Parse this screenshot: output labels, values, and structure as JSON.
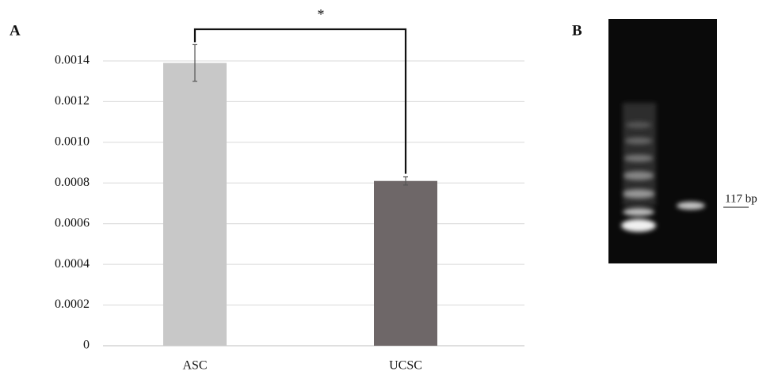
{
  "chart_data": {
    "type": "bar",
    "panel_label": "A",
    "significance": "*",
    "categories": [
      "ASC",
      "UCSC"
    ],
    "values": [
      0.00139,
      0.00081
    ],
    "errors": [
      9e-05,
      2e-05
    ],
    "colors": [
      "#c8c8c8",
      "#6e6768"
    ],
    "ylim": [
      0,
      0.0014
    ],
    "yticks": [
      0,
      0.0002,
      0.0004,
      0.0006,
      0.0008,
      {
        "value": 0.001,
        "label": "0.0010"
      },
      0.0012,
      0.0014
    ],
    "grid": true
  },
  "gel": {
    "panel_label": "B",
    "band_label": "117 bp"
  }
}
